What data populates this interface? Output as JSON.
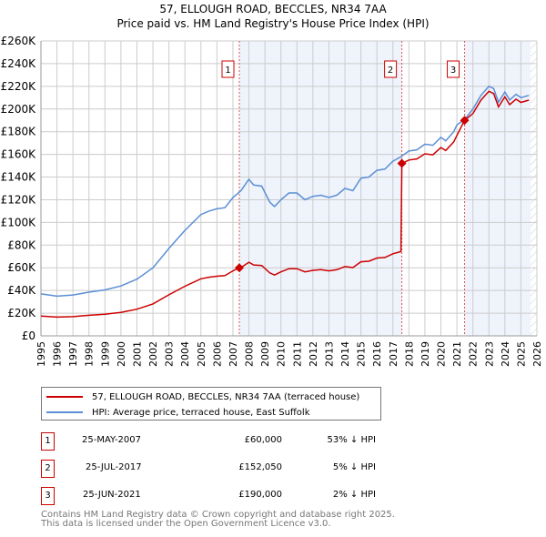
{
  "title": "57, ELLOUGH ROAD, BECCLES, NR34 7AA",
  "subtitle": "Price paid vs. HM Land Registry's House Price Index (HPI)",
  "chart_data": {
    "type": "line",
    "title": "57, ELLOUGH ROAD, BECCLES, NR34 7AA",
    "subtitle": "Price paid vs. HM Land Registry's House Price Index (HPI)",
    "xlim": [
      1995,
      2026
    ],
    "ylim": [
      0,
      260000
    ],
    "yticks": [
      0,
      20000,
      40000,
      60000,
      80000,
      100000,
      120000,
      140000,
      160000,
      180000,
      200000,
      220000,
      240000,
      260000
    ],
    "ytick_labels": [
      "£0",
      "£20K",
      "£40K",
      "£60K",
      "£80K",
      "£100K",
      "£120K",
      "£140K",
      "£160K",
      "£180K",
      "£200K",
      "£220K",
      "£240K",
      "£260K"
    ],
    "xticks": [
      "1995",
      "1996",
      "1997",
      "1998",
      "1999",
      "2000",
      "2001",
      "2002",
      "2003",
      "2004",
      "2005",
      "2006",
      "2007",
      "2008",
      "2009",
      "2010",
      "2011",
      "2012",
      "2013",
      "2014",
      "2015",
      "2016",
      "2017",
      "2018",
      "2019",
      "2020",
      "2021",
      "2022",
      "2023",
      "2024",
      "2025",
      "2026"
    ],
    "grid": true,
    "colors": {
      "property": "#cc0000",
      "hpi": "#5b8fd4",
      "shade": "#eef3fc",
      "sale": "#cc0000"
    },
    "shaded_ranges": [
      [
        2007.4,
        2017.56
      ],
      [
        2021.48,
        2025.6
      ]
    ],
    "hatched_from": 2025.6,
    "series": [
      {
        "name": "57, ELLOUGH ROAD, BECCLES, NR34 7AA (terraced house)",
        "key": "property",
        "x": [
          1995,
          1996,
          1997,
          1998,
          1999,
          2000,
          2001,
          2002,
          2003,
          2004,
          2005,
          2005.5,
          2006,
          2006.5,
          2007,
          2007.4,
          2007.5,
          2008,
          2008.3,
          2008.8,
          2009.3,
          2009.6,
          2010,
          2010.5,
          2011,
          2011.5,
          2012,
          2012.5,
          2013,
          2013.5,
          2014,
          2014.5,
          2015,
          2015.5,
          2016,
          2016.5,
          2017,
          2017.5,
          2017.56,
          2018,
          2018.5,
          2019,
          2019.5,
          2020,
          2020.3,
          2020.8,
          2021,
          2021.48,
          2022,
          2022.5,
          2023,
          2023.3,
          2023.6,
          2024,
          2024.3,
          2024.7,
          2025,
          2025.5
        ],
        "y": [
          17400,
          16500,
          16900,
          18100,
          19000,
          20700,
          23500,
          28200,
          36200,
          43700,
          50300,
          51700,
          52600,
          53100,
          57300,
          60000,
          60200,
          64900,
          62500,
          62000,
          55500,
          53600,
          56400,
          59200,
          59200,
          56400,
          57800,
          58300,
          57300,
          58300,
          61100,
          60200,
          65300,
          65800,
          68600,
          69100,
          72400,
          74300,
          152050,
          155000,
          156000,
          160500,
          159600,
          166000,
          163400,
          171000,
          176700,
          190000,
          196000,
          207800,
          215600,
          213600,
          201900,
          210700,
          203800,
          208700,
          205800,
          207800
        ]
      },
      {
        "name": "HPI: Average price, terraced house, East Suffolk",
        "key": "hpi",
        "x": [
          1995,
          1996,
          1997,
          1998,
          1999,
          2000,
          2001,
          2002,
          2003,
          2004,
          2005,
          2005.5,
          2006,
          2006.5,
          2007,
          2007.5,
          2008,
          2008.3,
          2008.8,
          2009.3,
          2009.6,
          2010,
          2010.5,
          2011,
          2011.5,
          2012,
          2012.5,
          2013,
          2013.5,
          2014,
          2014.5,
          2015,
          2015.5,
          2016,
          2016.5,
          2017,
          2017.5,
          2018,
          2018.5,
          2019,
          2019.5,
          2020,
          2020.3,
          2020.8,
          2021,
          2021.5,
          2022,
          2022.5,
          2023,
          2023.3,
          2023.6,
          2024,
          2024.3,
          2024.7,
          2025,
          2025.5
        ],
        "y": [
          37000,
          35000,
          36000,
          38500,
          40500,
          44000,
          50000,
          60000,
          77000,
          93000,
          107000,
          110000,
          112000,
          113000,
          122000,
          128000,
          138000,
          133000,
          132000,
          118000,
          114000,
          120000,
          126000,
          126000,
          120000,
          123000,
          124000,
          122000,
          124000,
          130000,
          128000,
          139000,
          140000,
          146000,
          147000,
          154000,
          158000,
          163000,
          164000,
          169000,
          168000,
          175000,
          172000,
          180000,
          186000,
          191000,
          200000,
          212000,
          220000,
          218000,
          206000,
          215000,
          208000,
          213000,
          210000,
          212000
        ]
      }
    ],
    "sales": [
      {
        "label": "1",
        "x": 2007.4,
        "y": 60000,
        "date": "25-MAY-2007",
        "price": "£60,000",
        "hpi_diff": "53% ↓ HPI"
      },
      {
        "label": "2",
        "x": 2017.56,
        "y": 152050,
        "date": "25-JUL-2017",
        "price": "£152,050",
        "hpi_diff": "5% ↓ HPI"
      },
      {
        "label": "3",
        "x": 2021.48,
        "y": 190000,
        "date": "25-JUN-2021",
        "price": "£190,000",
        "hpi_diff": "2% ↓ HPI"
      }
    ]
  },
  "legend": {
    "property": "57, ELLOUGH ROAD, BECCLES, NR34 7AA (terraced house)",
    "hpi": "HPI: Average price, terraced house, East Suffolk"
  },
  "footer": {
    "line1": "Contains HM Land Registry data © Crown copyright and database right 2025.",
    "line2": "This data is licensed under the Open Government Licence v3.0."
  }
}
